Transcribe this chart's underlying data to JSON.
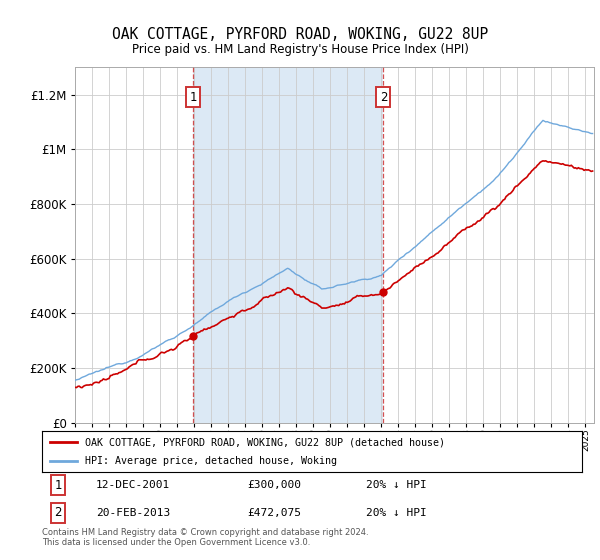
{
  "title": "OAK COTTAGE, PYRFORD ROAD, WOKING, GU22 8UP",
  "subtitle": "Price paid vs. HM Land Registry's House Price Index (HPI)",
  "hpi_label": "HPI: Average price, detached house, Woking",
  "property_label": "OAK COTTAGE, PYRFORD ROAD, WOKING, GU22 8UP (detached house)",
  "hpi_color": "#6fa8dc",
  "property_color": "#cc0000",
  "annotation1_date": "12-DEC-2001",
  "annotation1_price": "£300,000",
  "annotation1_hpi": "20% ↓ HPI",
  "annotation2_date": "20-FEB-2013",
  "annotation2_price": "£472,075",
  "annotation2_hpi": "20% ↓ HPI",
  "footnote": "Contains HM Land Registry data © Crown copyright and database right 2024.\nThis data is licensed under the Open Government Licence v3.0.",
  "ylim": [
    0,
    1300000
  ],
  "shade_color": "#dce9f5",
  "plot_bg_color": "#ffffff"
}
